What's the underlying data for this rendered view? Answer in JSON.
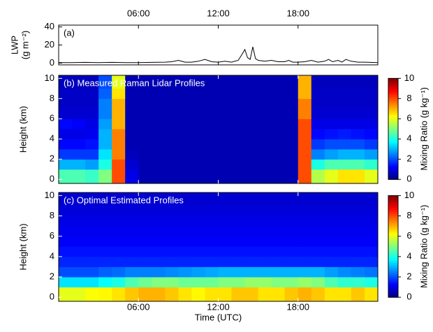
{
  "chart_data": [
    {
      "type": "line",
      "panel_label": "(a)",
      "ylabel": [
        "LWP",
        "(g m⁻²)"
      ],
      "color": "#000000",
      "xlim": [
        0,
        24
      ],
      "xticks": [
        {
          "value": 6,
          "label": "06:00"
        },
        {
          "value": 12,
          "label": "12:00"
        },
        {
          "value": 18,
          "label": "18:00"
        }
      ],
      "ylim": [
        -2,
        42
      ],
      "yticks": [
        0,
        20,
        40
      ],
      "x": [
        0,
        1,
        2,
        3,
        4,
        5,
        6,
        7,
        8,
        8.5,
        9,
        9.5,
        10,
        10.5,
        11,
        11.5,
        12,
        12.5,
        13,
        13.5,
        13.8,
        14,
        14.2,
        14.4,
        14.6,
        14.8,
        15,
        15.5,
        16,
        16.5,
        17,
        17.3,
        17.6,
        18,
        18.5,
        19,
        19.5,
        20,
        20.3,
        20.6,
        21,
        21.3,
        21.6,
        22,
        22.5,
        23,
        24
      ],
      "values": [
        0.5,
        0.5,
        0.8,
        0.5,
        0.8,
        0.5,
        0.5,
        0.8,
        1,
        1.5,
        3,
        1,
        1,
        2,
        4,
        1.5,
        1,
        2,
        1,
        3,
        10,
        15,
        6,
        4,
        18,
        5,
        3,
        2,
        3,
        1.5,
        1.5,
        3,
        1,
        1,
        1.5,
        3,
        1,
        2,
        4,
        1.5,
        3,
        1,
        4,
        2,
        1,
        1,
        0.5
      ]
    },
    {
      "type": "heatmap",
      "panel_label": "(b) Measured Raman Lidar Profiles",
      "ylabel": "Height (km)",
      "colormap": "jet",
      "xlim": [
        0,
        24
      ],
      "xticks": [
        6,
        12,
        18
      ],
      "ylim": [
        -0.4,
        10.3
      ],
      "yticks": [
        0,
        2,
        4,
        6,
        8,
        10
      ],
      "x_edges": [
        0,
        1,
        2,
        3,
        4,
        5,
        6,
        7,
        8,
        9,
        10,
        11,
        12,
        13,
        14,
        15,
        16,
        17,
        18,
        19,
        20,
        21,
        22,
        23,
        24
      ],
      "y_edges": [
        -0.4,
        1,
        2,
        3,
        4,
        5,
        6,
        7,
        8,
        9,
        10.3
      ],
      "z": [
        [
          4.5,
          4.5,
          4.3,
          5,
          8,
          1,
          0.5,
          0.5,
          0.5,
          0.5,
          0.5,
          0.5,
          0.5,
          0.5,
          0.5,
          0.5,
          0.5,
          0.5,
          8,
          5.5,
          6,
          6.5,
          6.5,
          6
        ],
        [
          3,
          3,
          2.8,
          4,
          8,
          0.8,
          0.5,
          0.5,
          0.5,
          0.5,
          0.5,
          0.5,
          0.5,
          0.5,
          0.5,
          0.5,
          0.5,
          0.5,
          8,
          4,
          4.5,
          4.5,
          4.5,
          4.2
        ],
        [
          1.8,
          1.8,
          1.8,
          3.5,
          7.5,
          0.6,
          0.5,
          0.5,
          0.5,
          0.5,
          0.5,
          0.5,
          0.5,
          0.5,
          0.5,
          0.5,
          0.5,
          0.5,
          8,
          2.5,
          2.8,
          3,
          3,
          2.8
        ],
        [
          1.3,
          1.3,
          1.4,
          3,
          7.5,
          0.5,
          0.5,
          0.5,
          0.5,
          0.5,
          0.5,
          0.5,
          0.5,
          0.5,
          0.5,
          0.5,
          0.5,
          0.5,
          8,
          1.8,
          2,
          2,
          2,
          1.8
        ],
        [
          1,
          1,
          1.1,
          3,
          7.5,
          0.5,
          0.5,
          0.5,
          0.5,
          0.5,
          0.5,
          0.5,
          0.5,
          0.5,
          0.5,
          0.5,
          0.5,
          0.5,
          8,
          1.3,
          1.4,
          1.5,
          1.4,
          1.3
        ],
        [
          1.3,
          1.2,
          1,
          2.8,
          7,
          0.5,
          0.5,
          0.5,
          0.5,
          0.5,
          0.5,
          0.5,
          0.5,
          0.5,
          0.5,
          0.5,
          0.5,
          0.5,
          8,
          1,
          1,
          1,
          1,
          1
        ],
        [
          0.8,
          0.8,
          0.8,
          2.5,
          7,
          0.5,
          0.5,
          0.5,
          0.5,
          0.5,
          0.5,
          0.5,
          0.5,
          0.5,
          0.5,
          0.5,
          0.5,
          0.5,
          7.5,
          0.8,
          0.8,
          0.8,
          0.8,
          0.8
        ],
        [
          0.7,
          0.7,
          0.7,
          2.5,
          7,
          0.5,
          0.5,
          0.5,
          0.5,
          0.5,
          0.5,
          0.5,
          0.5,
          0.5,
          0.5,
          0.5,
          0.5,
          0.5,
          7.5,
          0.7,
          0.7,
          0.7,
          0.7,
          0.7
        ],
        [
          0.7,
          0.7,
          0.7,
          2.2,
          6.5,
          0.5,
          0.5,
          0.5,
          0.5,
          0.5,
          0.5,
          0.5,
          0.5,
          0.5,
          0.5,
          0.5,
          0.5,
          0.5,
          7,
          0.7,
          0.7,
          0.7,
          0.7,
          0.7
        ],
        [
          0.6,
          0.6,
          0.6,
          2,
          6,
          0.5,
          0.5,
          0.5,
          0.5,
          0.5,
          0.5,
          0.5,
          0.5,
          0.5,
          0.5,
          0.5,
          0.5,
          0.5,
          7,
          0.6,
          0.6,
          0.6,
          0.6,
          0.6
        ]
      ],
      "colorbar": {
        "clim": [
          0,
          10
        ],
        "ticks": [
          0,
          2,
          4,
          6,
          8,
          10
        ],
        "label": "Mixing Ratio (g kg⁻¹)"
      }
    },
    {
      "type": "heatmap",
      "panel_label": "(c) Optimal Estimated Profiles",
      "ylabel": "Height (km)",
      "xlabel": "Time (UTC)",
      "colormap": "jet",
      "xlim": [
        0,
        24
      ],
      "xticks": [
        {
          "value": 6,
          "label": "06:00"
        },
        {
          "value": 12,
          "label": "12:00"
        },
        {
          "value": 18,
          "label": "18:00"
        }
      ],
      "ylim": [
        -0.4,
        10.3
      ],
      "yticks": [
        0,
        2,
        4,
        6,
        8,
        10
      ],
      "x_edges": [
        0,
        1,
        2,
        3,
        4,
        5,
        6,
        7,
        8,
        9,
        10,
        11,
        12,
        13,
        14,
        15,
        16,
        17,
        18,
        19,
        20,
        21,
        22,
        23,
        24
      ],
      "y_edges": [
        -0.4,
        1,
        2,
        3,
        4,
        5,
        6,
        7,
        8,
        9,
        10.3
      ],
      "z": [
        [
          6,
          6,
          6.2,
          6.3,
          6.5,
          6.8,
          7,
          7,
          6.8,
          6.5,
          6.3,
          6.5,
          6.5,
          6.8,
          6.8,
          6.5,
          6.5,
          6.8,
          7,
          6.8,
          6.5,
          6.5,
          6.8,
          6.5
        ],
        [
          3.5,
          3.5,
          3.5,
          3.8,
          4,
          4.5,
          4.8,
          5,
          5,
          4.8,
          4.8,
          4.8,
          5,
          5,
          5.2,
          5.2,
          5,
          5,
          5.2,
          5,
          4.5,
          4.2,
          4.2,
          4
        ],
        [
          2,
          2,
          2,
          2.2,
          2.3,
          2.5,
          2.5,
          2.5,
          2.6,
          2.7,
          2.8,
          2.9,
          3,
          3,
          3,
          3,
          3,
          3,
          3,
          3,
          2.8,
          2.6,
          2.5,
          2.4
        ],
        [
          1.6,
          1.6,
          1.6,
          1.6,
          1.6,
          1.6,
          1.6,
          1.6,
          1.6,
          1.6,
          1.6,
          1.6,
          1.6,
          1.6,
          1.6,
          1.6,
          1.6,
          1.6,
          1.6,
          1.6,
          1.6,
          1.6,
          1.6,
          1.6
        ],
        [
          1.4,
          1.4,
          1.4,
          1.4,
          1.4,
          1.4,
          1.4,
          1.4,
          1.4,
          1.4,
          1.4,
          1.4,
          1.4,
          1.4,
          1.4,
          1.4,
          1.4,
          1.4,
          1.4,
          1.4,
          1.4,
          1.4,
          1.4,
          1.4
        ],
        [
          1.2,
          1.2,
          1.2,
          1.2,
          1.2,
          1.2,
          1.2,
          1.2,
          1.2,
          1.2,
          1.2,
          1.2,
          1.2,
          1.2,
          1.2,
          1.2,
          1.2,
          1.2,
          1.2,
          1.2,
          1.2,
          1.2,
          1.2,
          1.2
        ],
        [
          1.1,
          1.1,
          1.1,
          1.1,
          1.1,
          1.1,
          1.1,
          1.1,
          1.1,
          1.1,
          1.1,
          1.1,
          1.1,
          1.1,
          1.1,
          1.1,
          1.1,
          1.1,
          1.1,
          1.1,
          1.1,
          1.1,
          1.1,
          1.1
        ],
        [
          1,
          1,
          1,
          1,
          1,
          1,
          1,
          1,
          1,
          1,
          1,
          1,
          1,
          1,
          1,
          1,
          1,
          1,
          1,
          1,
          1,
          1,
          1,
          1
        ],
        [
          0.9,
          0.9,
          0.9,
          0.9,
          0.9,
          0.9,
          0.9,
          0.9,
          0.9,
          0.9,
          0.9,
          0.9,
          0.9,
          0.9,
          0.9,
          0.9,
          0.9,
          0.9,
          0.9,
          0.9,
          0.9,
          0.9,
          0.9,
          0.9
        ],
        [
          0.8,
          0.8,
          0.8,
          0.8,
          0.8,
          0.8,
          0.8,
          0.8,
          0.8,
          0.8,
          0.8,
          0.8,
          0.8,
          0.8,
          0.8,
          0.8,
          0.8,
          0.8,
          0.8,
          0.8,
          0.8,
          0.8,
          0.8,
          0.8
        ]
      ],
      "colorbar": {
        "clim": [
          0,
          10
        ],
        "ticks": [
          0,
          2,
          4,
          6,
          8,
          10
        ],
        "label": "Mixing Ratio (g kg⁻¹)"
      }
    }
  ]
}
